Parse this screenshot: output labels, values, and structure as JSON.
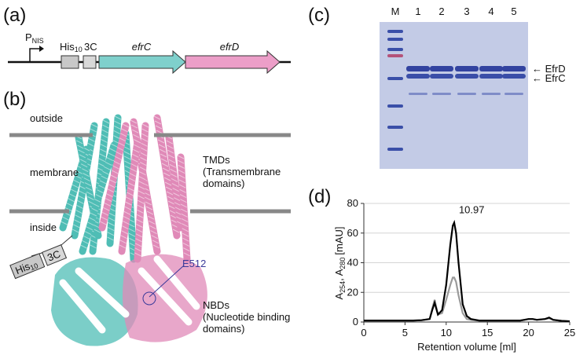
{
  "panels": {
    "a": {
      "label": "(a)",
      "promoter": {
        "text": "P",
        "subscript": "NIS"
      },
      "tag": {
        "text": "His",
        "subscript": "10"
      },
      "protease_site": "3C",
      "genes": [
        "efrC",
        "efrD"
      ]
    },
    "b": {
      "label": "(b)",
      "outside": "outside",
      "membrane": "membrane",
      "inside": "inside",
      "tmd": [
        "TMDs",
        "(Transmembrane",
        "domains)"
      ],
      "nbd": [
        "NBDs",
        "(Nucleotide binding",
        "domains)"
      ],
      "residue": "E512",
      "tag": {
        "text": "His",
        "subscript": "10"
      },
      "protease_site": "3C"
    },
    "c": {
      "label": "(c)",
      "lanes": [
        "M",
        "1",
        "2",
        "3",
        "4",
        "5"
      ],
      "bands": [
        "EfrD",
        "EfrC"
      ]
    },
    "d": {
      "label": "(d)"
    }
  },
  "chart_data": {
    "type": "line",
    "xlabel": "Retention volume [ml]",
    "ylabel": [
      "A",
      "254",
      ", A",
      "280",
      "[mAU]"
    ],
    "annotation": "10.97",
    "x": [
      0,
      2,
      4,
      6,
      7,
      8,
      8.3,
      8.6,
      9,
      9.5,
      10,
      10.5,
      10.8,
      10.97,
      11.2,
      11.5,
      12,
      12.5,
      13,
      14,
      15,
      16,
      17,
      18,
      19,
      19.5,
      20,
      20.5,
      21,
      22,
      22.5,
      23,
      24,
      25
    ],
    "series": [
      {
        "color": "#9a9a9a",
        "values": [
          1,
          1,
          1,
          1,
          1.2,
          2,
          9,
          15,
          5,
          6,
          15,
          25,
          30,
          30,
          27,
          18,
          6,
          2,
          1.5,
          1,
          1,
          1,
          1,
          1,
          1,
          1.5,
          2,
          2,
          1.5,
          2,
          2.5,
          1.5,
          0.8,
          0.5
        ]
      },
      {
        "color": "#000000",
        "values": [
          1,
          1,
          1,
          1,
          1.2,
          2,
          8,
          13,
          5,
          8,
          25,
          52,
          65,
          67,
          60,
          40,
          12,
          4,
          2,
          1,
          1,
          1,
          1,
          1,
          1,
          1.5,
          2,
          2,
          1.5,
          2,
          3,
          1.5,
          0.8,
          0.5
        ]
      }
    ],
    "xlim": [
      0,
      25
    ],
    "xticks": [
      0,
      5,
      10,
      15,
      20,
      25
    ],
    "ylim": [
      0,
      80
    ],
    "yticks": [
      0,
      20,
      40,
      60,
      80
    ],
    "grid": true
  }
}
